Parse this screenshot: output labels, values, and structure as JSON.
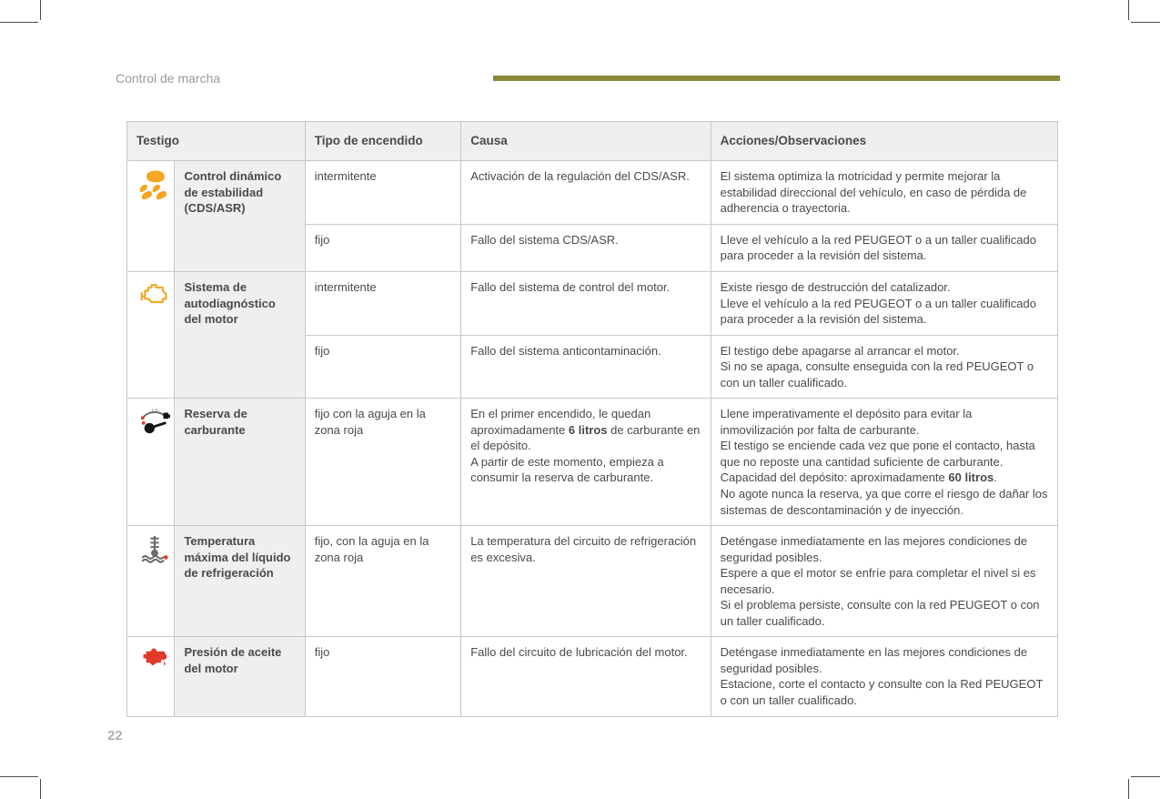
{
  "colors": {
    "header_bar": "#8a8a3a",
    "icon_orange": "#f5a623",
    "icon_red": "#e03a2a",
    "icon_gray": "#6b6b6b",
    "icon_black": "#161616"
  },
  "section_title": "Control de marcha",
  "page_number": "22",
  "headers": {
    "c1": "Testigo",
    "c2": "Tipo de encendido",
    "c3": "Causa",
    "c4": "Acciones/Observaciones"
  },
  "rows": {
    "r1": {
      "label": "Control dinámico de estabilidad (CDS/ASR)",
      "a": {
        "type": "intermitente",
        "cause": "Activación de la regulación del CDS/ASR.",
        "action": "El sistema optimiza la motricidad y permite mejorar la estabilidad direccional del vehículo, en caso de pérdida de adherencia o trayectoria."
      },
      "b": {
        "type": "fijo",
        "cause": "Fallo del sistema CDS/ASR.",
        "action": "Lleve el vehículo a la red PEUGEOT o a un taller cualificado para proceder a la revisión del sistema."
      }
    },
    "r2": {
      "label": "Sistema de autodiagnóstico del motor",
      "a": {
        "type": "intermitente",
        "cause": "Fallo del sistema de control del motor.",
        "action": "Existe riesgo de destrucción del catalizador.\nLleve el vehículo a la red PEUGEOT o a un taller cualificado para proceder a la revisión del sistema."
      },
      "b": {
        "type": "fijo",
        "cause": "Fallo del sistema anticontaminación.",
        "action": "El testigo debe apagarse al arrancar el motor.\nSi no se apaga, consulte enseguida con la red PEUGEOT o con un taller cualificado."
      }
    },
    "r3": {
      "label": "Reserva de carburante",
      "a": {
        "type": "fijo con la aguja en la zona roja",
        "cause_pre": "En el primer encendido, le quedan aproximadamente ",
        "cause_bold": "6 litros",
        "cause_post": " de carburante en el depósito.\nA partir de este momento, empieza a consumir la reserva de carburante.",
        "action_pre": "Llene imperativamente el depósito para evitar la inmovilización por falta de carburante.\nEl testigo se enciende cada vez que pone el contacto, hasta que no reposte una cantidad suficiente de carburante.\nCapacidad del depósito: aproximadamente ",
        "action_bold": "60 litros",
        "action_post": ".\nNo agote nunca la reserva, ya que corre el riesgo de dañar los sistemas de descontaminación y de inyección."
      }
    },
    "r4": {
      "label": "Temperatura máxima del líquido de refrigeración",
      "a": {
        "type": "fijo, con la aguja en la zona roja",
        "cause": "La temperatura del circuito de refrigeración es excesiva.",
        "action": "Deténgase inmediatamente en las mejores condiciones de seguridad posibles.\nEspere a que el motor se enfríe para completar el nivel si es necesario.\nSi el problema persiste, consulte con la red PEUGEOT o con un taller cualificado."
      }
    },
    "r5": {
      "label": "Presión de aceite del motor",
      "a": {
        "type": "fijo",
        "cause": "Fallo del circuito de lubricación del motor.",
        "action": "Deténgase inmediatamente en las mejores condiciones de seguridad posibles.\nEstacione, corte el contacto y consulte con la Red PEUGEOT o con un taller cualificado."
      }
    }
  }
}
